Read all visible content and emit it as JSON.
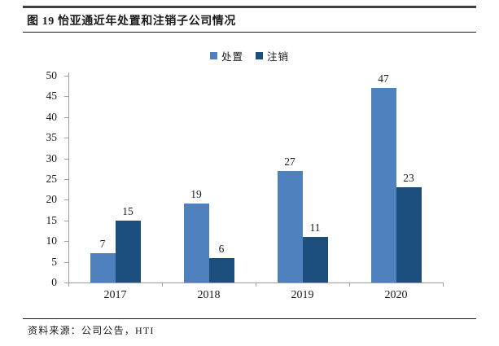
{
  "header": {
    "title": "图 19 怡亚通近年处置和注销子公司情况"
  },
  "footer": {
    "source": "资料来源：公司公告，HTI"
  },
  "colors": {
    "series_disposal": "#4E81BD",
    "series_deregister": "#1C4E7E",
    "axis": "#9e9e9e",
    "text": "#1a1a1a"
  },
  "chart_data": {
    "type": "bar",
    "title": "图 19 怡亚通近年处置和注销子公司情况",
    "categories": [
      "2017",
      "2018",
      "2019",
      "2020"
    ],
    "series": [
      {
        "name": "处置",
        "color": "#4E81BD",
        "values": [
          7,
          19,
          27,
          47
        ]
      },
      {
        "name": "注销",
        "color": "#1C4E7E",
        "values": [
          15,
          6,
          11,
          23
        ]
      }
    ],
    "xlabel": "",
    "ylabel": "",
    "ylim": [
      0,
      50
    ],
    "ytick_step": 5,
    "grid": false,
    "legend_position": "top-center",
    "data_labels": true,
    "source_note": "资料来源：公司公告，HTI"
  }
}
